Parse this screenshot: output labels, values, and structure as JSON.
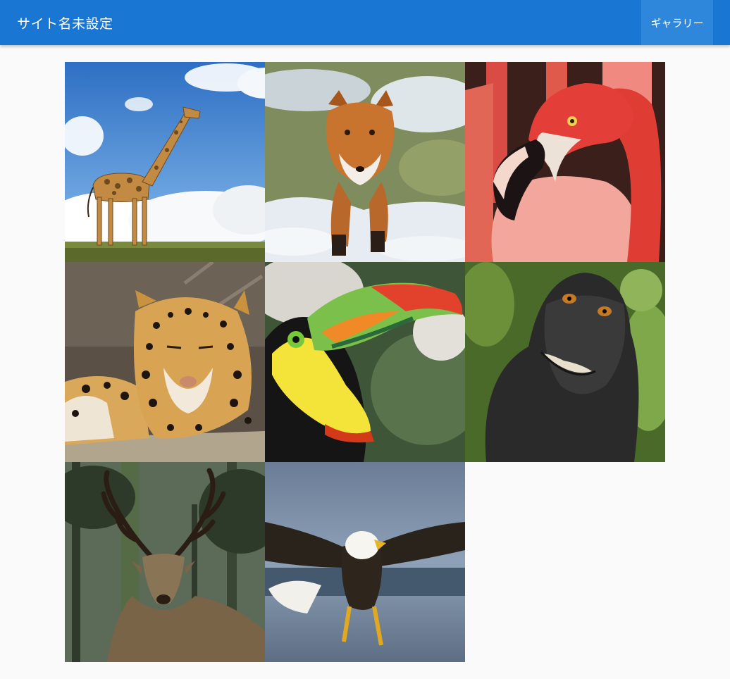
{
  "header": {
    "site_title": "サイト名未設定",
    "nav": [
      {
        "label": "ギャラリー",
        "active": true
      }
    ]
  },
  "colors": {
    "app_bar": "#1976d2",
    "nav_active": "#2f87dc",
    "background": "#fafafa"
  },
  "gallery": {
    "columns": 3,
    "items": [
      {
        "subject": "giraffe"
      },
      {
        "subject": "fox"
      },
      {
        "subject": "flamingo"
      },
      {
        "subject": "leopard"
      },
      {
        "subject": "toucan"
      },
      {
        "subject": "macaque"
      },
      {
        "subject": "deer"
      },
      {
        "subject": "eagle"
      }
    ]
  }
}
